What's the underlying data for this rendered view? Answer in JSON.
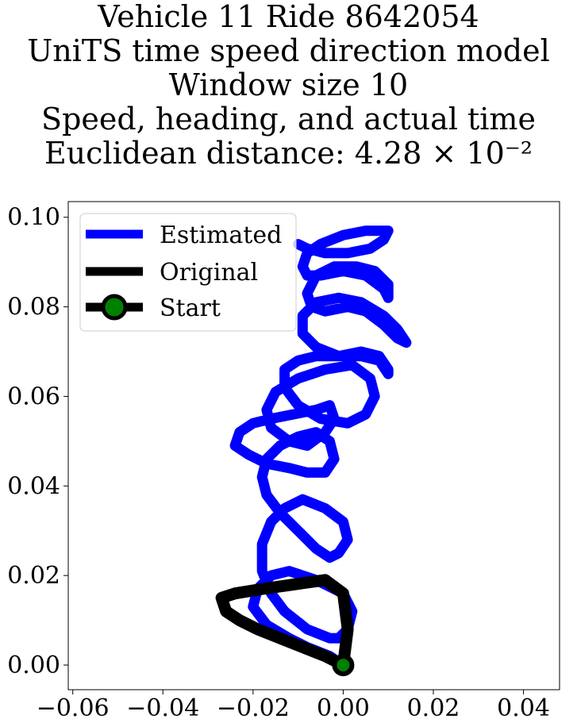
{
  "chart_data": {
    "type": "line",
    "title_lines": [
      "Vehicle 11 Ride 8642054",
      "UniTS time speed direction model",
      "Window size 10",
      "Speed, heading, and actual time",
      "Euclidean distance: 4.28 × 10⁻²"
    ],
    "xlabel": "",
    "ylabel": "",
    "xlim": [
      -0.061,
      0.048
    ],
    "ylim": [
      -0.0055,
      0.1035
    ],
    "xticks": [
      -0.06,
      -0.04,
      -0.02,
      0.0,
      0.02,
      0.04
    ],
    "xtick_labels": [
      "−0.06",
      "−0.04",
      "−0.02",
      "0.00",
      "0.02",
      "0.04"
    ],
    "yticks": [
      0.0,
      0.02,
      0.04,
      0.06,
      0.08,
      0.1
    ],
    "ytick_labels": [
      "0.00",
      "0.02",
      "0.04",
      "0.06",
      "0.08",
      "0.10"
    ],
    "grid": false,
    "legend_position": "top-left",
    "series": [
      {
        "name": "Estimated",
        "color": "#0000ff",
        "x": [
          0.0,
          -0.003,
          -0.008,
          -0.012,
          -0.017,
          -0.02,
          -0.019,
          -0.016,
          -0.012,
          -0.006,
          0.0,
          0.002,
          0.001,
          -0.001,
          -0.003,
          -0.008,
          -0.013,
          -0.016,
          -0.018,
          -0.018,
          -0.016,
          -0.013,
          -0.009,
          -0.004,
          0.0,
          0.001,
          -0.001,
          -0.003,
          -0.006,
          -0.01,
          -0.014,
          -0.017,
          -0.018,
          -0.017,
          -0.014,
          -0.01,
          -0.006,
          -0.003,
          -0.002,
          -0.004,
          -0.008,
          -0.012,
          -0.017,
          -0.021,
          -0.024,
          -0.023,
          -0.02,
          -0.016,
          -0.011,
          -0.006,
          -0.003,
          -0.002,
          -0.004,
          -0.008,
          -0.012,
          -0.016,
          -0.017,
          -0.015,
          -0.01,
          -0.004,
          0.002,
          0.006,
          0.007,
          0.005,
          0.001,
          -0.005,
          -0.01,
          -0.013,
          -0.013,
          -0.01,
          -0.006,
          -0.001,
          0.004,
          0.008,
          0.01,
          0.01,
          0.008,
          0.004,
          -0.001,
          -0.006,
          -0.009,
          -0.009,
          -0.006,
          -0.001,
          0.004,
          0.009,
          0.012,
          0.014,
          0.012,
          0.009,
          0.005,
          0.001,
          -0.004,
          -0.007,
          -0.008,
          -0.006,
          -0.002,
          0.003,
          0.007,
          0.01,
          0.01,
          0.009,
          0.005,
          0.0,
          -0.005,
          -0.008,
          -0.009,
          -0.008,
          -0.005,
          0.0,
          0.005,
          0.009,
          0.01,
          0.009,
          0.006,
          0.001,
          -0.004,
          -0.008,
          -0.01
        ],
        "y": [
          0.0,
          0.002,
          0.004,
          0.006,
          0.009,
          0.013,
          0.017,
          0.02,
          0.021,
          0.019,
          0.016,
          0.012,
          0.008,
          0.006,
          0.006,
          0.008,
          0.012,
          0.016,
          0.021,
          0.027,
          0.032,
          0.035,
          0.037,
          0.035,
          0.032,
          0.028,
          0.025,
          0.024,
          0.026,
          0.03,
          0.034,
          0.038,
          0.042,
          0.046,
          0.049,
          0.051,
          0.052,
          0.05,
          0.046,
          0.043,
          0.043,
          0.044,
          0.045,
          0.047,
          0.049,
          0.052,
          0.054,
          0.055,
          0.056,
          0.057,
          0.058,
          0.055,
          0.052,
          0.049,
          0.05,
          0.053,
          0.057,
          0.061,
          0.064,
          0.066,
          0.067,
          0.064,
          0.06,
          0.056,
          0.054,
          0.055,
          0.058,
          0.062,
          0.066,
          0.068,
          0.069,
          0.069,
          0.069,
          0.068,
          0.065,
          0.066,
          0.069,
          0.07,
          0.069,
          0.071,
          0.074,
          0.078,
          0.081,
          0.082,
          0.081,
          0.078,
          0.075,
          0.072,
          0.073,
          0.076,
          0.079,
          0.08,
          0.079,
          0.08,
          0.083,
          0.087,
          0.089,
          0.089,
          0.088,
          0.085,
          0.082,
          0.084,
          0.087,
          0.088,
          0.087,
          0.087,
          0.089,
          0.092,
          0.094,
          0.096,
          0.097,
          0.097,
          0.097,
          0.095,
          0.093,
          0.092,
          0.092,
          0.093,
          0.094
        ]
      },
      {
        "name": "Original",
        "color": "#000000",
        "x": [
          0.0,
          -0.004,
          -0.009,
          -0.014,
          -0.019,
          -0.023,
          -0.026,
          -0.027,
          -0.024,
          -0.018,
          -0.011,
          -0.004,
          0.0,
          0.001,
          0.0
        ],
        "y": [
          0.0,
          0.002,
          0.004,
          0.006,
          0.008,
          0.01,
          0.012,
          0.015,
          0.016,
          0.017,
          0.018,
          0.019,
          0.016,
          0.008,
          0.0
        ]
      }
    ],
    "start_marker": {
      "name": "Start",
      "x": 0.0,
      "y": 0.0,
      "face_color": "#008000",
      "edge_color": "#000000"
    }
  }
}
